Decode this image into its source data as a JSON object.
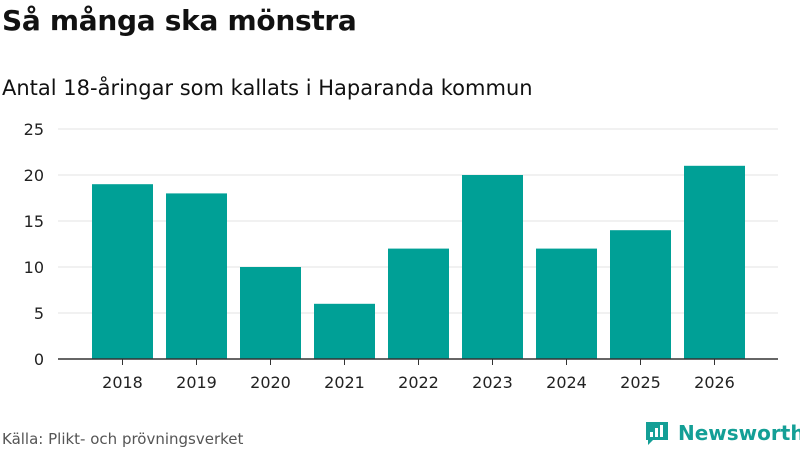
{
  "header": {
    "title": "Så många ska mönstra",
    "subtitle": "Antal 18-åringar som kallats i Haparanda kommun"
  },
  "footer": {
    "source": "Källa: Plikt- och prövningsverket",
    "brand": "Newsworthy",
    "brand_icon": "bar-chart-speech-bubble-icon"
  },
  "colors": {
    "bar": "#00a096",
    "grid": "#e3e3e3",
    "axis": "#333333",
    "brand": "#149f96"
  },
  "chart_data": {
    "type": "bar",
    "categories": [
      "2018",
      "2019",
      "2020",
      "2021",
      "2022",
      "2023",
      "2024",
      "2025",
      "2026"
    ],
    "values": [
      19,
      18,
      10,
      6,
      12,
      20,
      12,
      14,
      21
    ],
    "yticks": [
      0,
      5,
      10,
      15,
      20,
      25
    ],
    "ylim": [
      0,
      25
    ],
    "grid": true,
    "legend": "none",
    "xlabel": "",
    "ylabel": ""
  }
}
